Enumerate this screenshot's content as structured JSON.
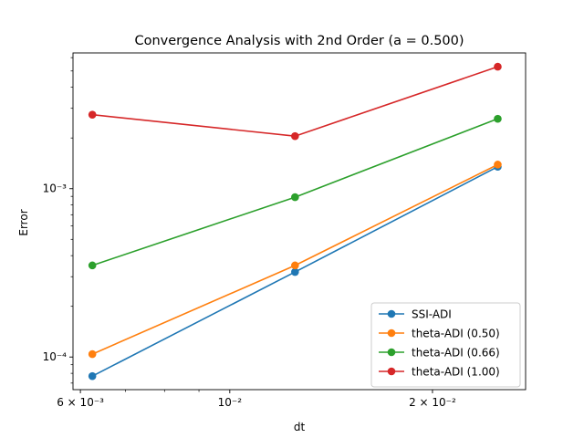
{
  "chart_data": {
    "type": "line",
    "title": "Convergence Analysis with 2nd Order (a = 0.500)",
    "xlabel": "dt",
    "ylabel": "Error",
    "xscale": "log",
    "yscale": "log",
    "xlim": [
      0.00585,
      0.0275
    ],
    "ylim": [
      6.4e-05,
      0.0064
    ],
    "grid": false,
    "legend_position": "lower-right",
    "x_ticks": [
      {
        "value": 0.006,
        "label": "6 × 10⁻³"
      },
      {
        "value": 0.01,
        "label": "10⁻²"
      },
      {
        "value": 0.02,
        "label": "2 × 10⁻²"
      }
    ],
    "x_minor_ticks": [
      0.007,
      0.008,
      0.009
    ],
    "y_ticks": [
      {
        "value": 0.0001,
        "label": "10⁻⁴"
      },
      {
        "value": 0.001,
        "label": "10⁻³"
      }
    ],
    "y_minor_ticks": [
      7e-05,
      8e-05,
      9e-05,
      0.0002,
      0.0003,
      0.0004,
      0.0005,
      0.0006,
      0.0007,
      0.0008,
      0.0009,
      0.002,
      0.003,
      0.004,
      0.005,
      0.006
    ],
    "x": [
      0.00625,
      0.0125,
      0.025
    ],
    "series": [
      {
        "name": "SSI-ADI",
        "color": "#1f77b4",
        "values": [
          7.7e-05,
          0.00032,
          0.00135
        ]
      },
      {
        "name": "theta-ADI (0.50)",
        "color": "#ff7f0e",
        "values": [
          0.000104,
          0.00035,
          0.00139
        ]
      },
      {
        "name": "theta-ADI (0.66)",
        "color": "#2ca02c",
        "values": [
          0.00035,
          0.00089,
          0.0026
        ]
      },
      {
        "name": "theta-ADI (1.00)",
        "color": "#d62728",
        "values": [
          0.00275,
          0.00205,
          0.0053
        ]
      }
    ]
  }
}
